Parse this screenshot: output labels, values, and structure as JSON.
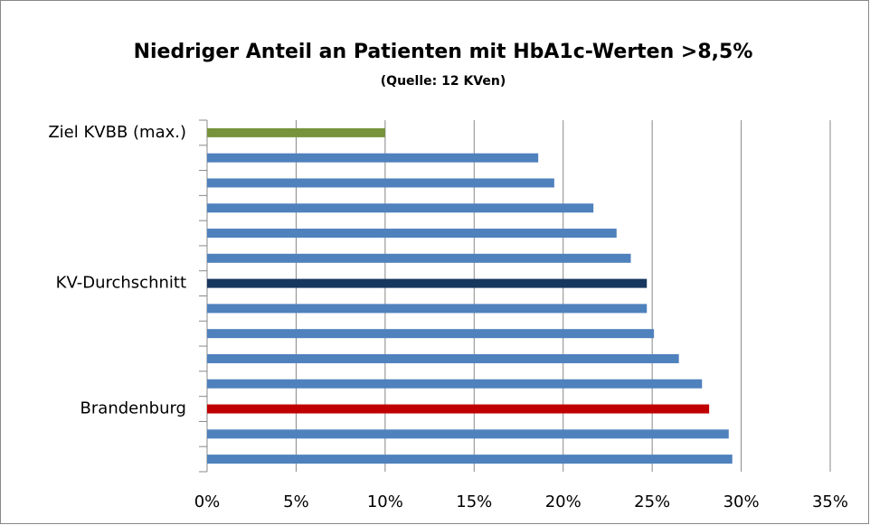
{
  "chart_data": {
    "type": "barh",
    "title": "Niedriger Anteil an Patienten mit HbA1c-Werten >8,5%",
    "subtitle": "(Quelle: 12 KVen)",
    "categories": [
      "Ziel KVBB (max.)",
      null,
      null,
      null,
      null,
      null,
      "KV-Durchschnitt",
      null,
      null,
      null,
      null,
      "Brandenburg",
      null,
      null
    ],
    "values": [
      10.0,
      18.6,
      19.5,
      21.7,
      23.0,
      23.8,
      24.7,
      24.7,
      25.1,
      26.5,
      27.8,
      28.2,
      29.3,
      29.5
    ],
    "colors": [
      "#77933c",
      "#4f81bd",
      "#4f81bd",
      "#4f81bd",
      "#4f81bd",
      "#4f81bd",
      "#17375e",
      "#4f81bd",
      "#4f81bd",
      "#4f81bd",
      "#4f81bd",
      "#c00000",
      "#4f81bd",
      "#4f81bd"
    ],
    "xlim": [
      0,
      35
    ],
    "xticks": [
      {
        "value": 0,
        "label": "0%"
      },
      {
        "value": 5,
        "label": "5%"
      },
      {
        "value": 10,
        "label": "10%"
      },
      {
        "value": 15,
        "label": "15%"
      },
      {
        "value": 20,
        "label": "20%"
      },
      {
        "value": 25,
        "label": "25%"
      },
      {
        "value": 30,
        "label": "30%"
      },
      {
        "value": 35,
        "label": "35%"
      }
    ],
    "grid": true
  }
}
